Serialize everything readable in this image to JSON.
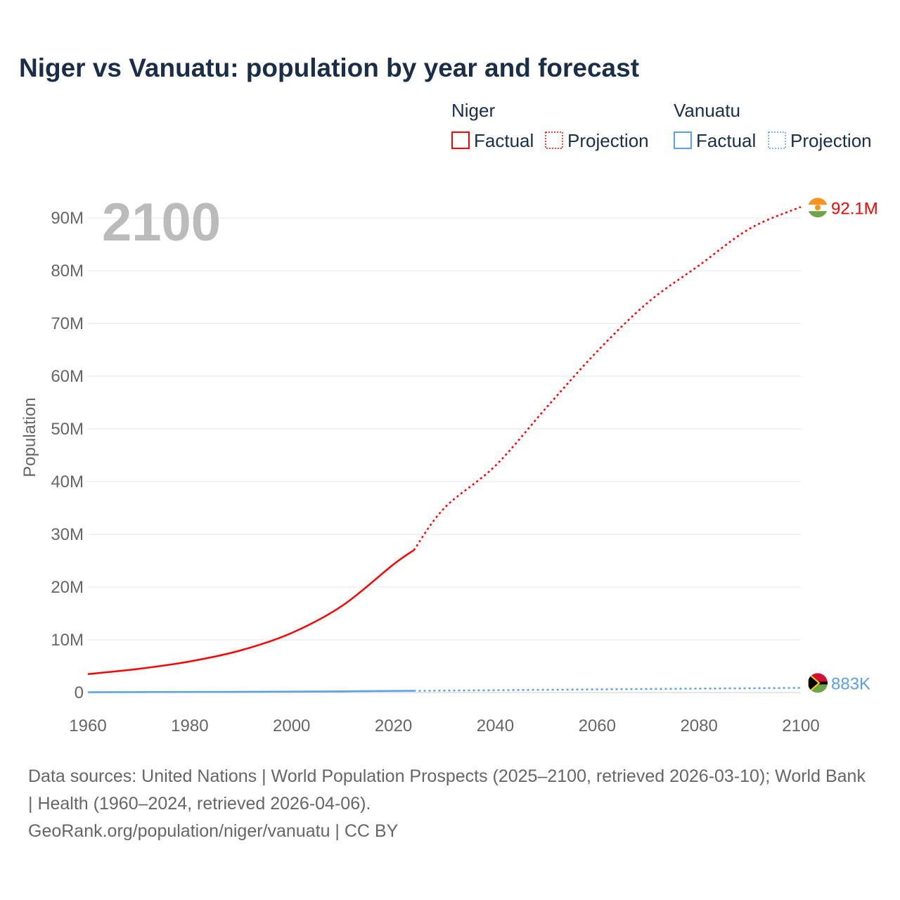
{
  "chart_data": {
    "type": "line",
    "title": "Niger vs Vanuatu: population by year and forecast",
    "ylabel": "Population",
    "xlabel": "",
    "xlim": [
      1960,
      2100
    ],
    "ylim": [
      0,
      90000000
    ],
    "xticks": [
      "1960",
      "1980",
      "2000",
      "2020",
      "2040",
      "2060",
      "2080",
      "2100"
    ],
    "yticks": [
      "0",
      "10M",
      "20M",
      "30M",
      "40M",
      "50M",
      "60M",
      "70M",
      "80M",
      "90M"
    ],
    "year_label": "2100",
    "grid": true,
    "legend": {
      "groups": [
        {
          "name": "Niger",
          "items": [
            "Factual",
            "Projection"
          ]
        },
        {
          "name": "Vanuatu",
          "items": [
            "Factual",
            "Projection"
          ]
        }
      ],
      "placement": "top-right"
    },
    "series": [
      {
        "name": "Niger",
        "color": "#ff0000",
        "end_label": "92.1M",
        "factual": {
          "x": [
            1960,
            1970,
            1980,
            1990,
            2000,
            2010,
            2020,
            2024
          ],
          "y": [
            3500000,
            4500000,
            5900000,
            8000000,
            11300000,
            16500000,
            24300000,
            27000000
          ]
        },
        "projection": {
          "x": [
            2024,
            2030,
            2040,
            2050,
            2060,
            2070,
            2080,
            2090,
            2100
          ],
          "y": [
            27000000,
            35000000,
            43000000,
            54000000,
            64700000,
            74000000,
            81000000,
            88000000,
            92100000
          ]
        }
      },
      {
        "name": "Vanuatu",
        "color": "#5aa0e8",
        "end_label": "883K",
        "factual": {
          "x": [
            1960,
            1980,
            2000,
            2024
          ],
          "y": [
            64000,
            117000,
            185000,
            330000
          ]
        },
        "projection": {
          "x": [
            2024,
            2050,
            2075,
            2100
          ],
          "y": [
            330000,
            530000,
            720000,
            883000
          ]
        }
      }
    ]
  },
  "footer": {
    "line1": "Data sources: United Nations | World Population Prospects (2025–2100, retrieved 2026-03-10); World Bank | Health (1960–2024, retrieved 2026-04-06).",
    "line2": "GeoRank.org/population/niger/vanuatu | CC BY"
  }
}
